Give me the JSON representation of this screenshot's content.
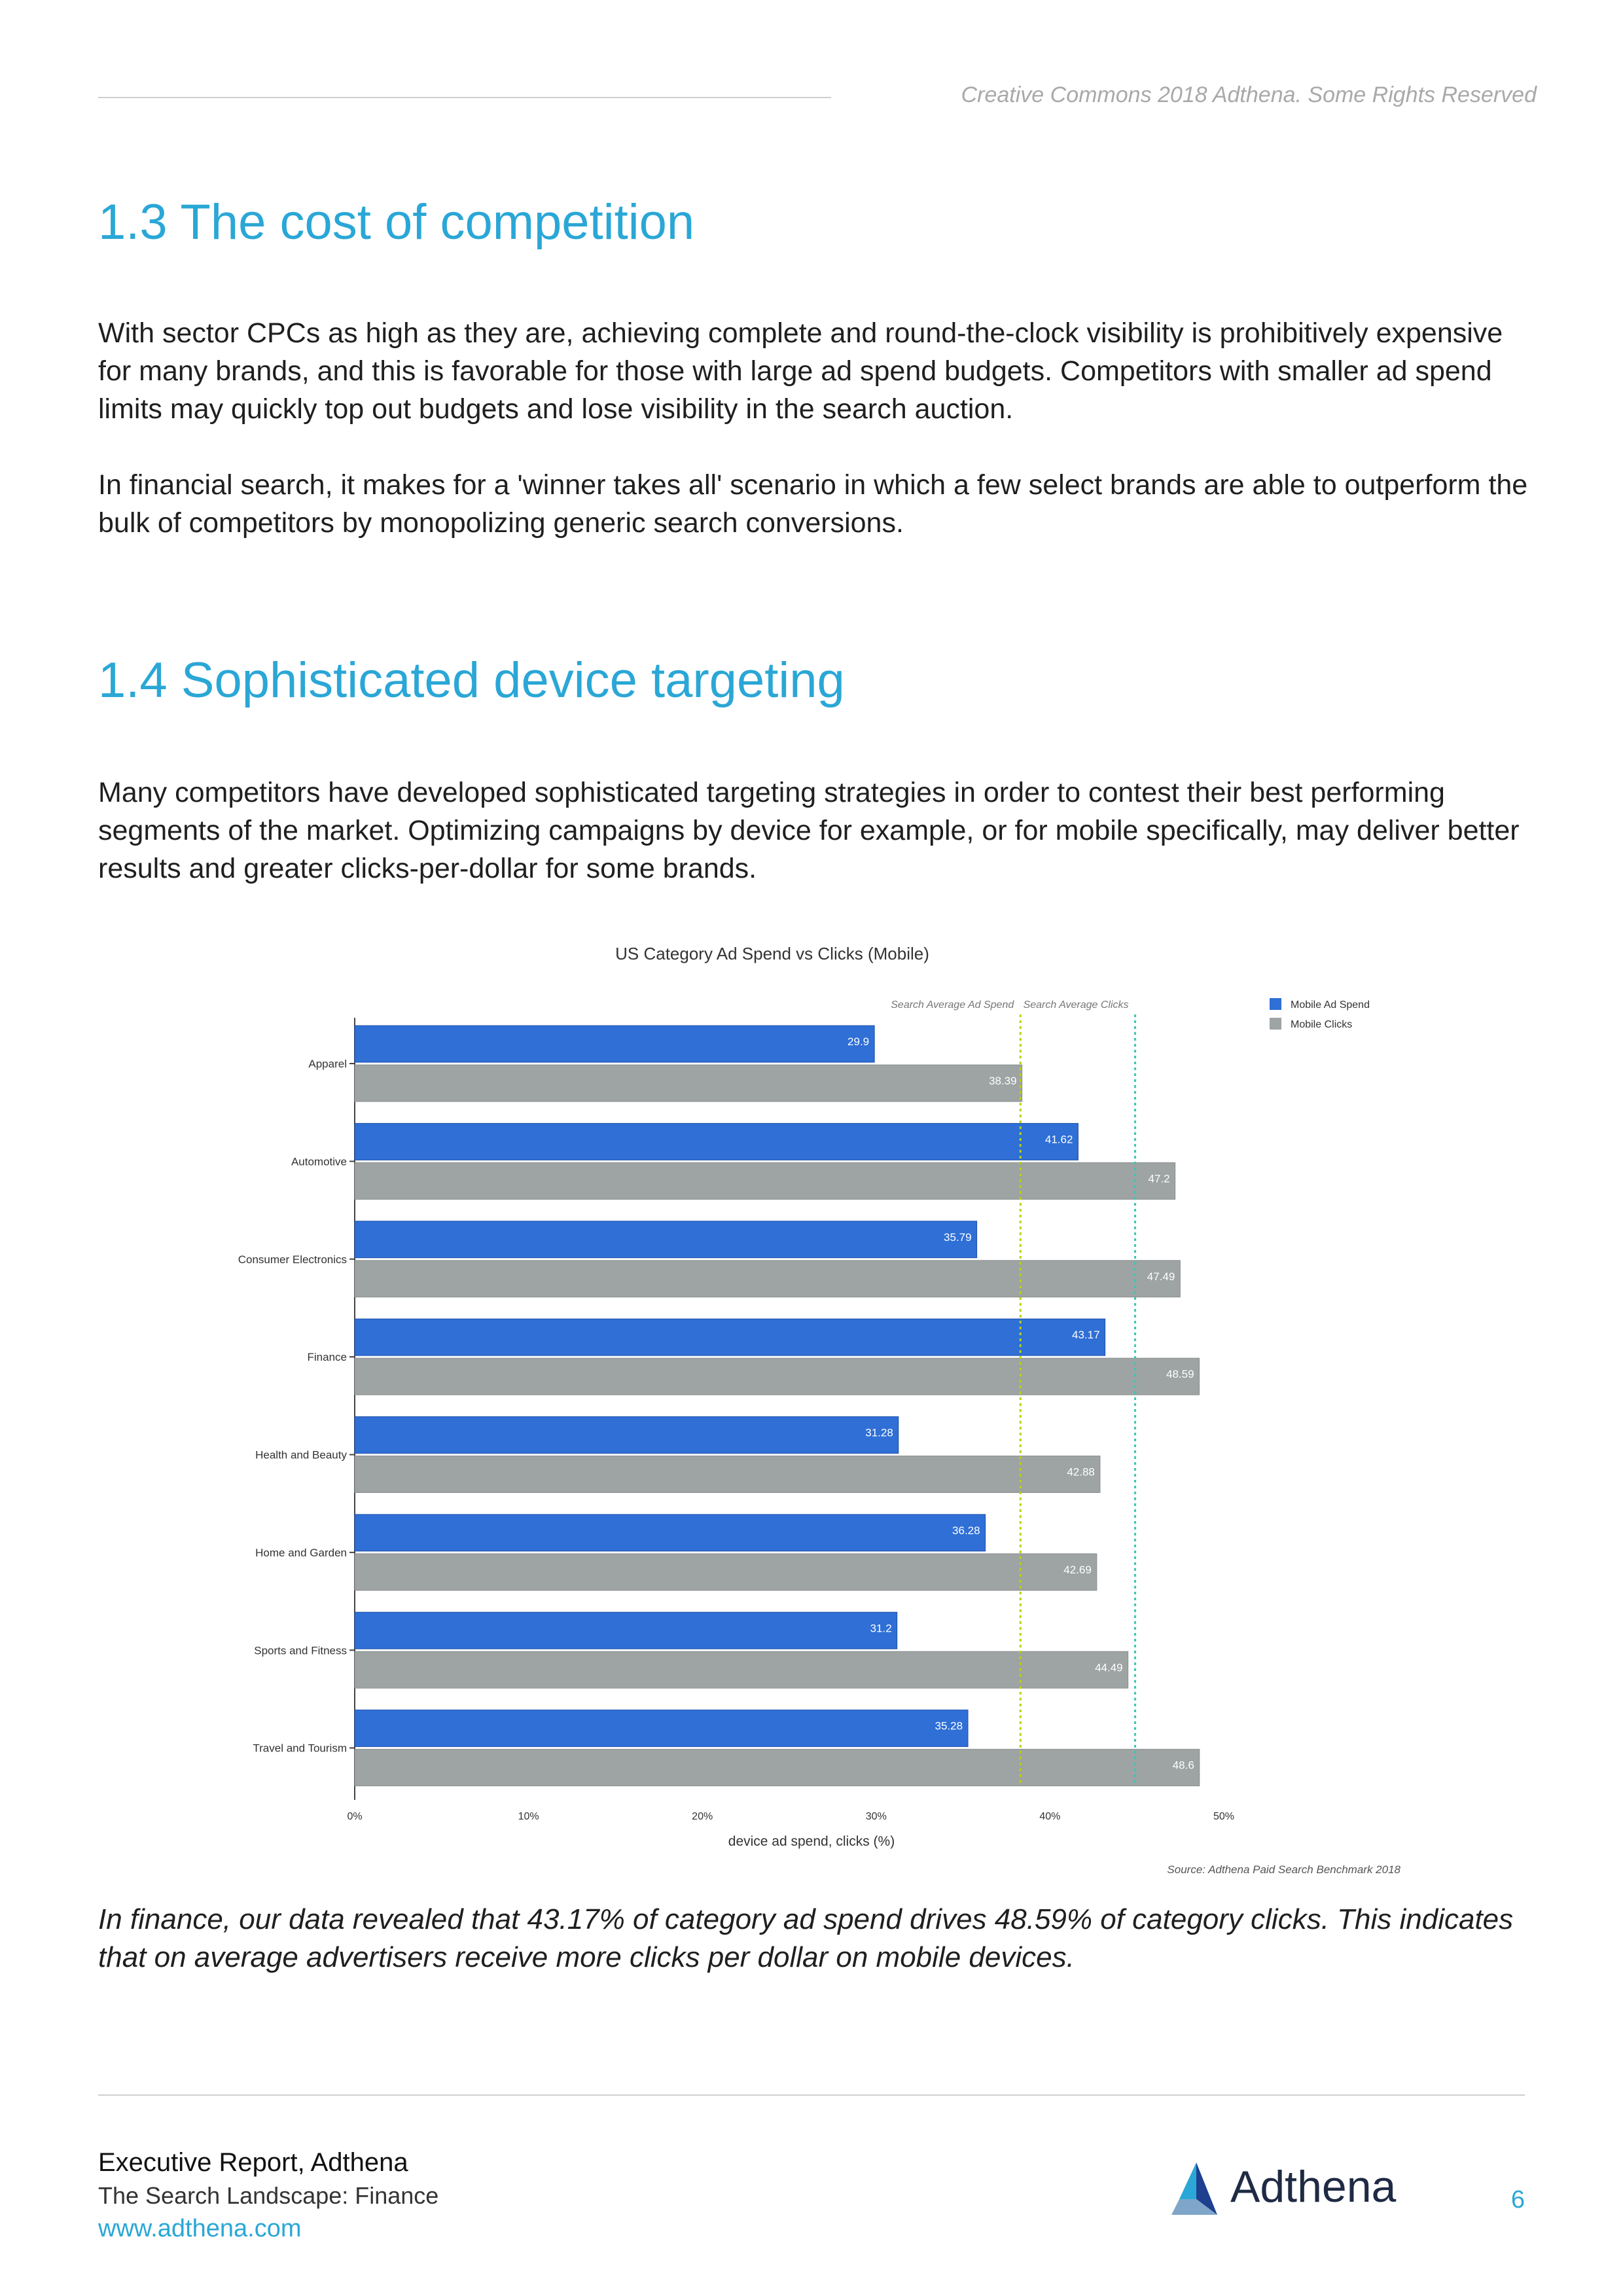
{
  "header": {
    "note": "Creative Commons 2018 Adthena. Some Rights Reserved"
  },
  "sections": [
    {
      "title": "1.3 The cost of competition",
      "paragraphs": [
        "With sector CPCs as high as they are, achieving complete and round-the-clock visibility is prohibitively expensive for many brands, and this is favorable for those with large ad spend budgets. Competitors with smaller ad spend limits may quickly top out budgets and lose visibility in the search auction.",
        "In financial search, it makes for a 'winner takes all' scenario in which a few select brands are able to outperform the bulk of competitors by monopolizing generic search conversions."
      ]
    },
    {
      "title": "1.4 Sophisticated device targeting",
      "paragraphs": [
        "Many competitors have developed sophisticated targeting strategies in order to contest their best performing segments of the market. Optimizing campaigns by device for example, or for mobile specifically, may deliver better results and greater clicks-per-dollar for some brands."
      ]
    }
  ],
  "chart_data": {
    "type": "bar",
    "orientation": "horizontal",
    "title": "US Category Ad Spend vs Clicks (Mobile)",
    "xlabel": "device ad spend, clicks (%)",
    "ylabel": "",
    "xlim": [
      0,
      50
    ],
    "xticks": [
      "0%",
      "10%",
      "20%",
      "30%",
      "40%",
      "50%"
    ],
    "categories": [
      "Apparel",
      "Automotive",
      "Consumer Electronics",
      "Finance",
      "Health and Beauty",
      "Home and Garden",
      "Sports and Fitness",
      "Travel and Tourism"
    ],
    "series": [
      {
        "name": "Mobile Ad Spend",
        "color": "#2f6fd6",
        "values": [
          29.9,
          41.62,
          35.79,
          43.17,
          31.28,
          36.28,
          31.2,
          35.28
        ],
        "labels": [
          "29.9",
          "41.62",
          "35.79",
          "43.17",
          "31.28",
          "36.28",
          "31.2",
          "35.28"
        ]
      },
      {
        "name": "Mobile Clicks",
        "color": "#9ea3a3",
        "values": [
          38.39,
          47.2,
          47.49,
          48.59,
          42.88,
          42.69,
          44.49,
          48.6
        ],
        "labels": [
          "38.39",
          "47.2",
          "47.49",
          "48.59",
          "42.88",
          "42.69",
          "44.49",
          "48.6"
        ]
      }
    ],
    "reference_lines": [
      {
        "label": "Search Average Ad Spend",
        "value": 38.3,
        "color": "#b9d300"
      },
      {
        "label": "Search Average Clicks",
        "value": 44.9,
        "color": "#3cc7b4"
      }
    ],
    "legend_position": "top-right",
    "source": "Source: Adthena Paid Search Benchmark 2018"
  },
  "caption": "In finance, our data revealed that 43.17% of category ad spend drives 48.59% of category clicks. This indicates that on average advertisers receive more clicks per dollar on mobile devices.",
  "footer": {
    "title": "Executive Report, Adthena",
    "subtitle": "The Search Landscape: Finance",
    "url": "www.adthena.com",
    "brand": "Adthena",
    "page_number": "6"
  }
}
